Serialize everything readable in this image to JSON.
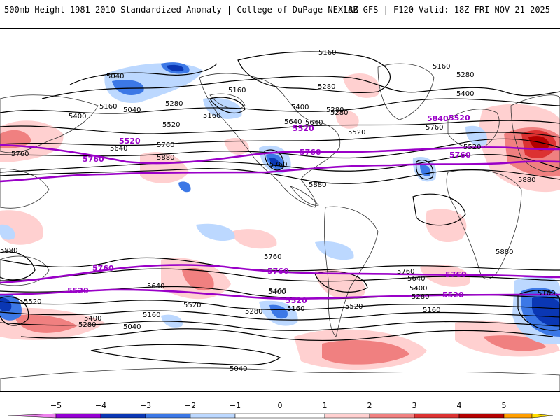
{
  "header": {
    "title": "500mb Height 1981–2010 Standardized Anomaly | College of DuPage NEXLAB",
    "run_info": "18Z GFS | F120 Valid: 18Z FRI NOV 21 2025"
  },
  "colors": {
    "background": "#ffffff",
    "land_outline": "#333333",
    "contour": "#000000",
    "key_contour": "#9a00c8",
    "colorscale": [
      "#ee82ee",
      "#9400d3",
      "#0a37b4",
      "#3c78e6",
      "#bcd8ff",
      "#ffffff",
      "#ffd0d0",
      "#f08080",
      "#dc3232",
      "#b40000",
      "#ff9e00",
      "#ffdd00"
    ]
  },
  "contours": {
    "labels": [
      "5040",
      "5160",
      "5280",
      "5400",
      "5520",
      "5640",
      "5760",
      "5880"
    ],
    "key_labels": [
      "5520",
      "5760",
      "5840"
    ]
  },
  "map_labels": [
    {
      "id": "l1",
      "text": "5160"
    },
    {
      "id": "l2",
      "text": "5160"
    },
    {
      "id": "l3",
      "text": "5280"
    },
    {
      "id": "l4",
      "text": "5040"
    },
    {
      "id": "l5",
      "text": "5160"
    },
    {
      "id": "l6",
      "text": "5040"
    },
    {
      "id": "l7",
      "text": "5280"
    },
    {
      "id": "l8",
      "text": "5160"
    },
    {
      "id": "l9",
      "text": "5160"
    },
    {
      "id": "l10",
      "text": "5280"
    },
    {
      "id": "l11",
      "text": "5400"
    },
    {
      "id": "l12",
      "text": "5280"
    },
    {
      "id": "l13",
      "text": "5400"
    },
    {
      "id": "l14",
      "text": "5400"
    },
    {
      "id": "l15",
      "text": "5640"
    },
    {
      "id": "l16",
      "text": "5520"
    },
    {
      "id": "l17",
      "text": "5520"
    },
    {
      "id": "l18",
      "text": "5640"
    },
    {
      "id": "l19",
      "text": "5760"
    },
    {
      "id": "l20",
      "text": "5880"
    },
    {
      "id": "l21",
      "text": "5760"
    },
    {
      "id": "l22",
      "text": "5640"
    },
    {
      "id": "l23",
      "text": "5760"
    },
    {
      "id": "l24",
      "text": "5880"
    },
    {
      "id": "l25",
      "text": "5520"
    },
    {
      "id": "l26",
      "text": "5880"
    },
    {
      "id": "l27",
      "text": "5880"
    },
    {
      "id": "l28",
      "text": "5880"
    },
    {
      "id": "l29",
      "text": "5760"
    },
    {
      "id": "l30",
      "text": "5760"
    },
    {
      "id": "l31",
      "text": "5640"
    },
    {
      "id": "l32",
      "text": "5520"
    },
    {
      "id": "l33",
      "text": "5520"
    },
    {
      "id": "l34",
      "text": "5400"
    },
    {
      "id": "l35",
      "text": "5280"
    },
    {
      "id": "l36",
      "text": "5160"
    },
    {
      "id": "l37",
      "text": "5040"
    },
    {
      "id": "l38",
      "text": "5400"
    },
    {
      "id": "l39",
      "text": "5280"
    },
    {
      "id": "l40",
      "text": "5160"
    },
    {
      "id": "l41",
      "text": "5520"
    },
    {
      "id": "l42",
      "text": "5760"
    },
    {
      "id": "l43",
      "text": "5640"
    },
    {
      "id": "l44",
      "text": "5400"
    },
    {
      "id": "l45",
      "text": "5280"
    },
    {
      "id": "l46",
      "text": "5160"
    },
    {
      "id": "l47",
      "text": "5160"
    },
    {
      "id": "l48",
      "text": "5040"
    },
    {
      "id": "l49",
      "text": "5400"
    },
    {
      "id": "l50",
      "text": "5280"
    }
  ],
  "key_map_labels": [
    {
      "id": "k1",
      "text": "5520"
    },
    {
      "id": "k2",
      "text": "5760"
    },
    {
      "id": "k3",
      "text": "5520"
    },
    {
      "id": "k4",
      "text": "5760"
    },
    {
      "id": "k5",
      "text": "5840"
    },
    {
      "id": "k6",
      "text": "5520"
    },
    {
      "id": "k7",
      "text": "5760"
    },
    {
      "id": "k8",
      "text": "5760"
    },
    {
      "id": "k9",
      "text": "5520"
    },
    {
      "id": "k10",
      "text": "5760"
    },
    {
      "id": "k11",
      "text": "5520"
    },
    {
      "id": "k12",
      "text": "5760"
    },
    {
      "id": "k13",
      "text": "5520"
    }
  ],
  "colorbar": {
    "ticks": [
      "−5",
      "−4",
      "−3",
      "−2",
      "−1",
      "0",
      "1",
      "2",
      "3",
      "4",
      "5"
    ]
  }
}
